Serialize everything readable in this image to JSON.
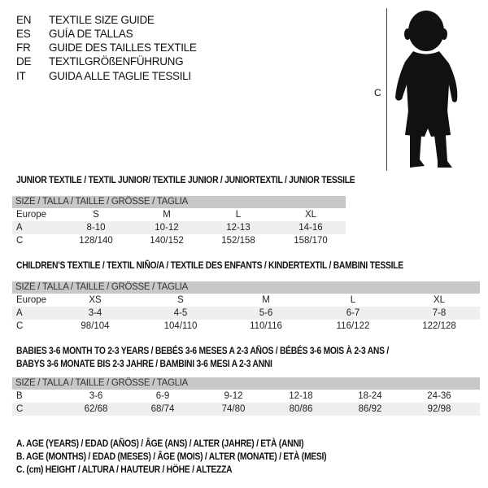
{
  "languages": [
    {
      "code": "EN",
      "label": "TEXTILE SIZE GUIDE"
    },
    {
      "code": "ES",
      "label": "GUÍA DE TALLAS"
    },
    {
      "code": "FR",
      "label": "GUIDE DES TAILLES TEXTILE"
    },
    {
      "code": "DE",
      "label": "TEXTILGRÖßENFÜHRUNG"
    },
    {
      "code": "IT",
      "label": "GUIDA ALLE TAGLIE TESSILI"
    }
  ],
  "figure": {
    "measure_label": "C",
    "icon": "child-silhouette"
  },
  "colors": {
    "header_bg": "#c8c8c8",
    "row_shade": "#efefef"
  },
  "tables": [
    {
      "title": [
        "JUNIOR TEXTILE / TEXTIL JUNIOR/ TEXTILE JUNIOR / JUNIORTEXTIL / JUNIOR TESSILE"
      ],
      "header": "SIZE / TALLA / TAILLE / GRÖSSE / TAGLIA",
      "rows": [
        {
          "label": "Europe",
          "cells": [
            "S",
            "M",
            "L",
            "XL"
          ]
        },
        {
          "label": "A",
          "cells": [
            "8-10",
            "10-12",
            "12-13",
            "14-16"
          ]
        },
        {
          "label": "C",
          "cells": [
            "128/140",
            "140/152",
            "152/158",
            "158/170"
          ]
        }
      ]
    },
    {
      "title": [
        "CHILDREN'S TEXTILE / TEXTIL NIÑO/A / TEXTILE DES ENFANTS / KINDERTEXTIL / BAMBINI TESSILE"
      ],
      "header": "SIZE / TALLA / TAILLE / GRÖSSE / TAGLIA",
      "rows": [
        {
          "label": "Europe",
          "cells": [
            "XS",
            "S",
            "M",
            "L",
            "XL"
          ]
        },
        {
          "label": "A",
          "cells": [
            "3-4",
            "4-5",
            "5-6",
            "6-7",
            "7-8"
          ]
        },
        {
          "label": "C",
          "cells": [
            "98/104",
            "104/110",
            "110/116",
            "116/122",
            "122/128"
          ]
        }
      ]
    },
    {
      "title": [
        "BABIES 3-6 MONTH TO 2-3 YEARS / BEBÉS 3-6 MESES A 2-3 AÑOS / BÉBÉS 3-6 MOIS À 2-3 ANS /",
        "BABYS 3-6 MONATE BIS 2-3 JAHRE / BAMBINI 3-6 MESI A 2-3 ANNI"
      ],
      "header": "SIZE / TALLA / TAILLE / GRÖSSE / TAGLIA",
      "rows": [
        {
          "label": "B",
          "cells": [
            "3-6",
            "6-9",
            "9-12",
            "12-18",
            "18-24",
            "24-36"
          ]
        },
        {
          "label": "C",
          "cells": [
            "62/68",
            "68/74",
            "74/80",
            "80/86",
            "86/92",
            "92/98"
          ]
        }
      ]
    }
  ],
  "legend": [
    "A. AGE (YEARS) / EDAD (AÑOS) / ÂGE (ANS) / ALTER (JAHRE) / ETÀ (ANNI)",
    "B. AGE (MONTHS) / EDAD (MESES) / ÂGE (MOIS) / ALTER (MONATE) / ETÀ (MESI)",
    "C. (cm) HEIGHT / ALTURA / HAUTEUR / HÖHE / ALTEZZA"
  ]
}
